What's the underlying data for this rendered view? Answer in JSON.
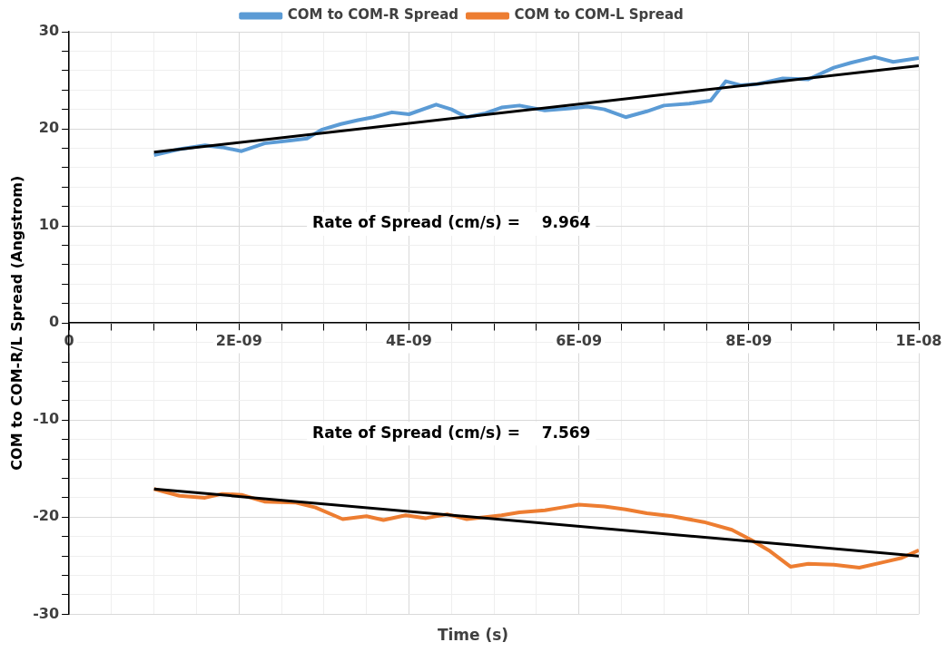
{
  "chart_data": {
    "type": "line",
    "xlabel": "Time (s)",
    "ylabel": "COM to COM-R/L Spread (Angstrom)",
    "xlim": [
      0,
      1e-08
    ],
    "xticks": [
      0,
      {
        "value": 5e-10,
        "label": null
      },
      {
        "value": 2e-09,
        "label": "2E-09"
      },
      {
        "value": 1e-09,
        "label": null
      },
      {
        "value": 1.5e-09,
        "label": null
      },
      {
        "value": 2.5e-09,
        "label": null
      },
      {
        "value": 3e-09,
        "label": null
      },
      {
        "value": 3.5e-09,
        "label": null
      },
      {
        "value": 4e-09,
        "label": "4E-09"
      },
      {
        "value": 4.5e-09,
        "label": null
      },
      {
        "value": 5e-09,
        "label": null
      },
      {
        "value": 5.5e-09,
        "label": null
      },
      {
        "value": 6e-09,
        "label": "6E-09"
      },
      {
        "value": 6.5e-09,
        "label": null
      },
      {
        "value": 7e-09,
        "label": null
      },
      {
        "value": 7.5e-09,
        "label": null
      },
      {
        "value": 8e-09,
        "label": "8E-09"
      },
      {
        "value": 8.5e-09,
        "label": null
      },
      {
        "value": 9e-09,
        "label": null
      },
      {
        "value": 9.5e-09,
        "label": null
      },
      {
        "value": 1e-08,
        "label": "1E-08"
      }
    ],
    "ylim": [
      -30,
      30
    ],
    "yticks": [
      -30,
      {
        "value": -28,
        "label": null
      },
      {
        "value": -26,
        "label": null
      },
      {
        "value": -24,
        "label": null
      },
      {
        "value": -22,
        "label": null
      },
      -20,
      {
        "value": -18,
        "label": null
      },
      {
        "value": -16,
        "label": null
      },
      {
        "value": -14,
        "label": null
      },
      {
        "value": -12,
        "label": null
      },
      -10,
      {
        "value": -8,
        "label": null
      },
      {
        "value": -6,
        "label": null
      },
      {
        "value": -4,
        "label": null
      },
      {
        "value": -2,
        "label": null
      },
      0,
      {
        "value": 2,
        "label": null
      },
      {
        "value": 4,
        "label": null
      },
      {
        "value": 6,
        "label": null
      },
      {
        "value": 8,
        "label": null
      },
      10,
      {
        "value": 12,
        "label": null
      },
      {
        "value": 14,
        "label": null
      },
      {
        "value": 16,
        "label": null
      },
      {
        "value": 18,
        "label": null
      },
      20,
      {
        "value": 22,
        "label": null
      },
      {
        "value": 24,
        "label": null
      },
      {
        "value": 26,
        "label": null
      },
      {
        "value": 28,
        "label": null
      },
      30
    ],
    "grid": true,
    "legend": "top",
    "marker": "none",
    "line_style": "solid",
    "annotations": [
      "Rate of Spread (cm/s) =    9.964",
      "Rate of Spread (cm/s) =    7.569"
    ],
    "series": [
      {
        "name": "COM to COM-R Spread",
        "color": "#5b9bd5",
        "x": [
          1e-09,
          1.3e-09,
          1.6e-09,
          1.8e-09,
          2.03e-09,
          2.3e-09,
          2.6e-09,
          2.8e-09,
          2.97e-09,
          3.2e-09,
          3.4e-09,
          3.58e-09,
          3.8e-09,
          4e-09,
          4.32e-09,
          4.5e-09,
          4.68e-09,
          4.9e-09,
          5.09e-09,
          5.3e-09,
          5.6e-09,
          5.9e-09,
          6.1e-09,
          6.3e-09,
          6.55e-09,
          6.8e-09,
          7e-09,
          7.3e-09,
          7.55e-09,
          7.73e-09,
          7.9e-09,
          8.1e-09,
          8.4e-09,
          8.7e-09,
          9e-09,
          9.2e-09,
          9.48e-09,
          9.7e-09,
          1e-08
        ],
        "values": [
          17.3,
          17.9,
          18.3,
          18.1,
          17.7,
          18.5,
          18.8,
          19.0,
          19.9,
          20.5,
          20.9,
          21.2,
          21.7,
          21.5,
          22.5,
          22.0,
          21.2,
          21.6,
          22.2,
          22.4,
          21.9,
          22.1,
          22.3,
          22.0,
          21.2,
          21.8,
          22.4,
          22.6,
          22.9,
          24.9,
          24.5,
          24.6,
          25.2,
          25.1,
          26.3,
          26.8,
          27.4,
          26.9,
          27.3
        ]
      },
      {
        "name": "COM to COM-L Spread",
        "color": "#ed7d31",
        "x": [
          1e-09,
          1.3e-09,
          1.6e-09,
          1.8e-09,
          2.03e-09,
          2.3e-09,
          2.67e-09,
          2.9e-09,
          3.22e-09,
          3.5e-09,
          3.7e-09,
          3.96e-09,
          4.2e-09,
          4.45e-09,
          4.68e-09,
          4.9e-09,
          5.09e-09,
          5.3e-09,
          5.6e-09,
          5.8e-09,
          6e-09,
          6.3e-09,
          6.55e-09,
          6.8e-09,
          7.1e-09,
          7.47e-09,
          7.8e-09,
          8.02e-09,
          8.25e-09,
          8.49e-09,
          8.7e-09,
          9e-09,
          9.3e-09,
          9.6e-09,
          9.8e-09,
          1e-08
        ],
        "values": [
          -17.1,
          -17.8,
          -18.0,
          -17.6,
          -17.7,
          -18.4,
          -18.5,
          -19.0,
          -20.2,
          -19.9,
          -20.3,
          -19.8,
          -20.1,
          -19.7,
          -20.2,
          -20.0,
          -19.8,
          -19.5,
          -19.3,
          -19.0,
          -18.7,
          -18.9,
          -19.2,
          -19.6,
          -19.9,
          -20.5,
          -21.3,
          -22.3,
          -23.5,
          -25.1,
          -24.8,
          -24.9,
          -25.2,
          -24.6,
          -24.2,
          -23.4
        ]
      },
      {
        "type": "line",
        "color": "#000000",
        "x": [
          1e-09,
          1e-08
        ],
        "values": [
          17.6,
          26.5
        ]
      },
      {
        "type": "line",
        "color": "#000000",
        "x": [
          1e-09,
          1e-08
        ],
        "values": [
          -17.1,
          -24.0
        ]
      }
    ]
  }
}
